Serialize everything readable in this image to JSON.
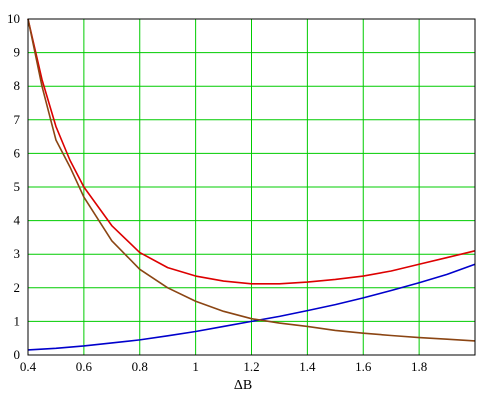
{
  "chart_data": {
    "type": "line",
    "title": "",
    "xlabel": "ΔB",
    "ylabel": "",
    "xlim": [
      0.4,
      2.0
    ],
    "ylim": [
      0,
      10
    ],
    "grid": true,
    "grid_color": "#00cc00",
    "x_ticks": [
      0.4,
      0.6,
      0.8,
      1.0,
      1.2,
      1.4,
      1.6,
      1.8
    ],
    "x_tick_labels": [
      "0.4",
      "0.6",
      "0.8",
      "1",
      "1.2",
      "1.4",
      "1.6",
      "1.8"
    ],
    "y_ticks": [
      0,
      1,
      2,
      3,
      4,
      5,
      6,
      7,
      8,
      9,
      10
    ],
    "y_tick_labels": [
      "0",
      "1",
      "2",
      "3",
      "4",
      "5",
      "6",
      "7",
      "8",
      "9",
      "10"
    ],
    "series": [
      {
        "color": "#dd0000",
        "x": [
          0.4,
          0.45,
          0.5,
          0.55,
          0.6,
          0.7,
          0.8,
          0.9,
          1.0,
          1.1,
          1.2,
          1.3,
          1.4,
          1.5,
          1.6,
          1.7,
          1.8,
          1.9,
          2.0
        ],
        "y": [
          10.0,
          8.2,
          6.8,
          5.8,
          5.0,
          3.85,
          3.05,
          2.6,
          2.35,
          2.2,
          2.12,
          2.12,
          2.17,
          2.25,
          2.35,
          2.5,
          2.7,
          2.9,
          3.1
        ]
      },
      {
        "color": "#0000cc",
        "x": [
          0.4,
          0.5,
          0.6,
          0.7,
          0.8,
          0.9,
          1.0,
          1.1,
          1.2,
          1.3,
          1.4,
          1.5,
          1.6,
          1.7,
          1.8,
          1.9,
          2.0
        ],
        "y": [
          0.15,
          0.2,
          0.27,
          0.36,
          0.45,
          0.57,
          0.7,
          0.85,
          1.0,
          1.15,
          1.32,
          1.5,
          1.7,
          1.92,
          2.15,
          2.4,
          2.7
        ]
      },
      {
        "color": "#8b4513",
        "x": [
          0.4,
          0.45,
          0.5,
          0.55,
          0.6,
          0.7,
          0.8,
          0.9,
          1.0,
          1.1,
          1.2,
          1.3,
          1.4,
          1.5,
          1.6,
          1.7,
          1.8,
          1.9,
          2.0
        ],
        "y": [
          10.0,
          8.0,
          6.4,
          5.6,
          4.7,
          3.4,
          2.55,
          2.0,
          1.6,
          1.3,
          1.08,
          0.95,
          0.85,
          0.73,
          0.65,
          0.58,
          0.52,
          0.47,
          0.42
        ]
      }
    ]
  }
}
